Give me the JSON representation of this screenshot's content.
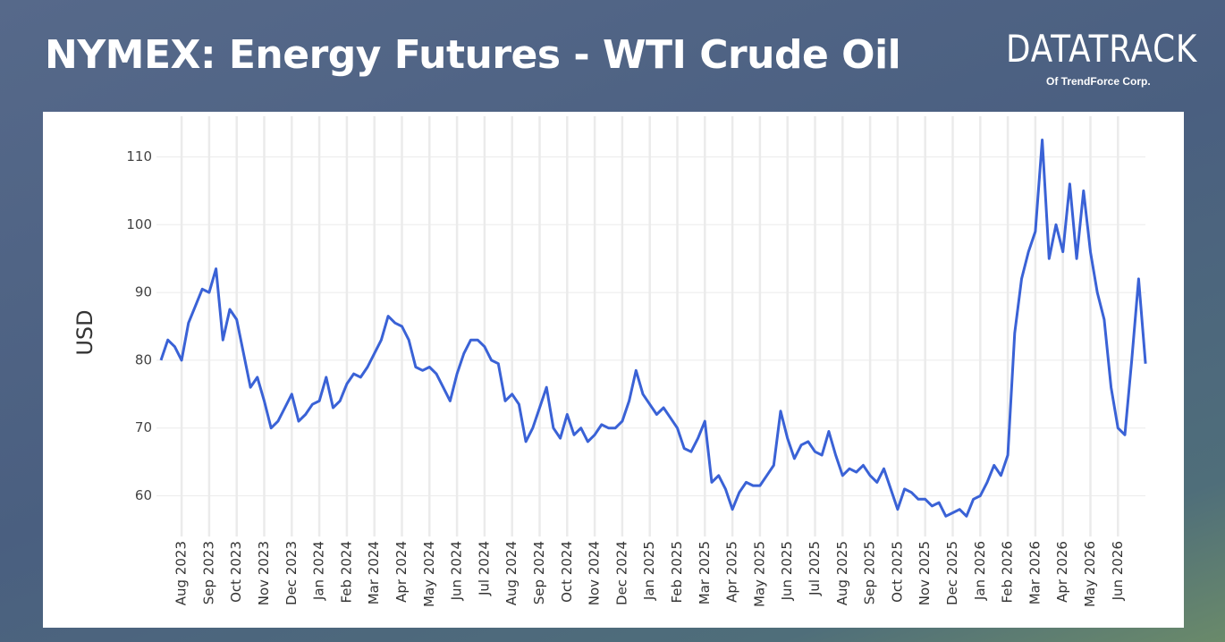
{
  "chart_data": {
    "type": "line",
    "title": "NYMEX: Energy Futures - WTI Crude Oil",
    "y_label": "USD",
    "categories": [
      null,
      null,
      null,
      "Aug 2023",
      null,
      null,
      null,
      "Sep 2023",
      null,
      null,
      null,
      "Oct 2023",
      null,
      null,
      null,
      "Nov 2023",
      null,
      null,
      null,
      "Dec 2023",
      null,
      null,
      null,
      "Jan 2024",
      null,
      null,
      null,
      "Feb 2024",
      null,
      null,
      null,
      "Mar 2024",
      null,
      null,
      null,
      "Apr 2024",
      null,
      null,
      null,
      "May 2024",
      null,
      null,
      null,
      "Jun 2024",
      null,
      null,
      null,
      "Jul 2024",
      null,
      null,
      null,
      "Aug 2024",
      null,
      null,
      null,
      "Sep 2024",
      null,
      null,
      null,
      "Oct 2024",
      null,
      null,
      null,
      "Nov 2024",
      null,
      null,
      null,
      "Dec 2024",
      null,
      null,
      null,
      "Jan 2025",
      null,
      null,
      null,
      "Feb 2025",
      null,
      null,
      null,
      "Mar 2025",
      null,
      null,
      null,
      "Apr 2025",
      null,
      null,
      null,
      "May 2025",
      null,
      null,
      null,
      "Jun 2025",
      null,
      null,
      null,
      "Jul 2025",
      null,
      null,
      null,
      "Aug 2025",
      null,
      null,
      null,
      "Sep 2025",
      null,
      null,
      null,
      "Oct 2025",
      null,
      null,
      null,
      "Nov 2025",
      null,
      null,
      null,
      "Dec 2025",
      null,
      null,
      null,
      "Jan 2026",
      null,
      null,
      null,
      "Feb 2026",
      null,
      null,
      null,
      "Mar 2026",
      null,
      null,
      null,
      "Apr 2026",
      null,
      null,
      null,
      "May 2026",
      null,
      null,
      null,
      "Jun 2026",
      null,
      null,
      null,
      null
    ],
    "values": [
      80,
      83,
      82,
      80,
      85.5,
      88,
      90.5,
      90,
      93.5,
      83,
      87.5,
      86,
      81,
      76,
      77.5,
      74,
      70,
      71,
      73,
      75,
      71,
      72,
      73.5,
      74,
      77.5,
      73,
      74,
      76.5,
      78,
      77.5,
      79,
      81,
      83,
      86.5,
      85.5,
      85,
      83,
      79,
      78.5,
      79,
      78,
      76,
      74,
      78,
      81,
      83,
      83,
      82,
      80,
      79.5,
      74,
      75,
      73.5,
      68,
      70,
      73,
      76,
      70,
      68.5,
      72,
      69,
      70,
      68,
      69,
      70.5,
      70,
      70,
      71,
      74,
      78.5,
      75,
      73.5,
      72,
      73,
      71.5,
      70,
      67,
      66.5,
      68.5,
      71,
      62,
      63,
      61,
      58,
      60.5,
      62,
      61.5,
      61.5,
      63,
      64.5,
      72.5,
      68.5,
      65.5,
      67.5,
      68,
      66.5,
      66,
      69.5,
      66,
      63,
      64,
      63.5,
      64.5,
      63,
      62,
      64,
      61,
      58,
      61,
      60.5,
      59.5,
      59.5,
      58.5,
      59,
      57,
      57.5,
      58,
      57,
      59.5,
      60,
      62,
      64.5,
      63,
      66,
      84,
      92,
      96,
      99,
      112.5,
      95,
      100,
      96,
      106,
      95,
      105,
      96,
      90,
      86,
      76,
      70,
      69,
      80,
      92,
      79.5
    ],
    "color": "#3a62d6",
    "ylim": [
      54,
      116
    ],
    "yticks": [
      60,
      70,
      80,
      90,
      100,
      110
    ],
    "grid": true
  },
  "logo": {
    "name": "DATATRACK",
    "sub": "Of TrendForce Corp."
  }
}
